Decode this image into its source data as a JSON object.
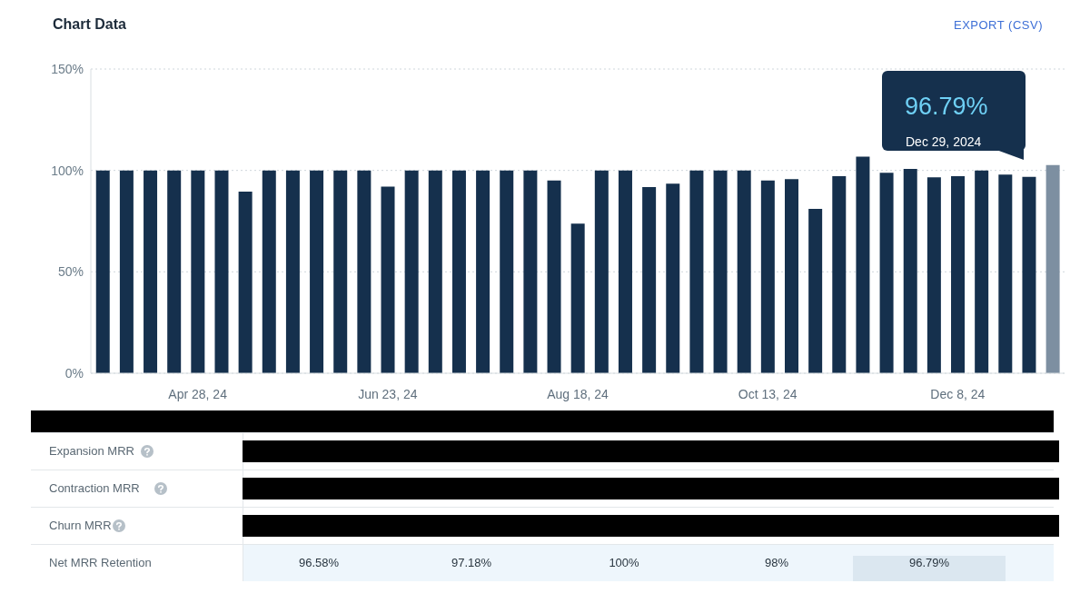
{
  "chart_data": {
    "type": "bar",
    "title": "Chart Data",
    "categories": [
      null,
      null,
      null,
      null,
      "Apr 28, 24",
      null,
      null,
      null,
      null,
      null,
      null,
      null,
      "Jun 23, 24",
      null,
      null,
      null,
      null,
      null,
      null,
      null,
      "Aug 18, 24",
      null,
      null,
      null,
      null,
      null,
      null,
      null,
      "Oct 13, 24",
      null,
      null,
      null,
      null,
      null,
      null,
      null,
      "Dec 8, 24",
      null,
      null,
      null,
      null
    ],
    "values": [
      100,
      100,
      100,
      100,
      100,
      100,
      89.6,
      100,
      100,
      100,
      100,
      100,
      92,
      100,
      100,
      100,
      100,
      100,
      100,
      95,
      73.8,
      100,
      100,
      91.8,
      93.5,
      100,
      100,
      100,
      95,
      95.7,
      81.1,
      97.2,
      106.8,
      98.8,
      100.7,
      96.58,
      97.18,
      100,
      98,
      96.79,
      102.7
    ],
    "colors": [
      "#15304d",
      "#15304d",
      "#15304d",
      "#15304d",
      "#15304d",
      "#15304d",
      "#15304d",
      "#15304d",
      "#15304d",
      "#15304d",
      "#15304d",
      "#15304d",
      "#15304d",
      "#15304d",
      "#15304d",
      "#15304d",
      "#15304d",
      "#15304d",
      "#15304d",
      "#15304d",
      "#15304d",
      "#15304d",
      "#15304d",
      "#15304d",
      "#15304d",
      "#15304d",
      "#15304d",
      "#15304d",
      "#15304d",
      "#15304d",
      "#15304d",
      "#15304d",
      "#15304d",
      "#15304d",
      "#15304d",
      "#15304d",
      "#15304d",
      "#15304d",
      "#15304d",
      "#15304d",
      "#7d8fa1"
    ],
    "ylim": [
      0,
      150
    ],
    "yticks": [
      {
        "value": 0,
        "label": "0%"
      },
      {
        "value": 50,
        "label": "50%"
      },
      {
        "value": 100,
        "label": "100%"
      },
      {
        "value": 150,
        "label": "150%"
      }
    ],
    "grid": "y",
    "annotations": [
      "EXPORT (CSV)",
      "96.79%",
      "Dec 29, 2024",
      "Expansion MRR",
      "Contraction MRR",
      "Churn MRR",
      "Net MRR Retention",
      "96.58%",
      "97.18%",
      "100%",
      "98%",
      "96.79%"
    ]
  }
}
